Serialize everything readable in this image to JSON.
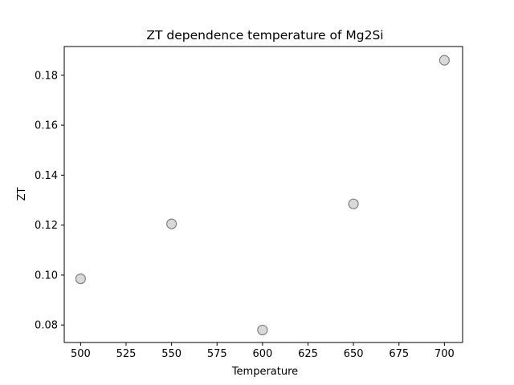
{
  "chart_data": {
    "type": "scatter",
    "title": "ZT dependence temperature of Mg2Si",
    "xlabel": "Temperature",
    "ylabel": "ZT",
    "x": [
      500,
      550,
      600,
      650,
      700
    ],
    "y": [
      0.0985,
      0.1205,
      0.078,
      0.1285,
      0.186
    ],
    "xlim": [
      491,
      710
    ],
    "ylim": [
      0.073,
      0.1915
    ],
    "xticks": [
      500,
      525,
      550,
      575,
      600,
      625,
      650,
      675,
      700
    ],
    "xtick_labels": [
      "500",
      "525",
      "550",
      "575",
      "600",
      "625",
      "650",
      "675",
      "700"
    ],
    "yticks": [
      0.08,
      0.1,
      0.12,
      0.14,
      0.16,
      0.18
    ],
    "ytick_labels": [
      "0.08",
      "0.10",
      "0.12",
      "0.14",
      "0.16",
      "0.18"
    ],
    "grid": false,
    "marker_fill": "#d9d9d9",
    "marker_edge": "#808080"
  }
}
